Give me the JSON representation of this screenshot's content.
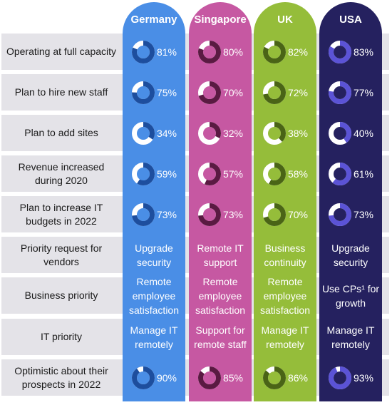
{
  "columns": [
    {
      "name": "Germany",
      "color": "#4a8ee6",
      "ring_fill": "#1d4e9e",
      "ring_track": "#ffffff"
    },
    {
      "name": "Singapore",
      "color": "#c658a2",
      "ring_fill": "#5a1a42",
      "ring_track": "#ffffff"
    },
    {
      "name": "UK",
      "color": "#95bd3a",
      "ring_fill": "#4a6416",
      "ring_track": "#ffffff"
    },
    {
      "name": "USA",
      "color": "#25215f",
      "ring_fill": "#5b53d6",
      "ring_track": "#ffffff"
    }
  ],
  "rows": [
    {
      "label": "Operating at full capacity",
      "kind": "pct"
    },
    {
      "label": "Plan to hire new staff",
      "kind": "pct"
    },
    {
      "label": "Plan to add sites",
      "kind": "pct"
    },
    {
      "label": "Revenue increased during 2020",
      "kind": "pct"
    },
    {
      "label": "Plan to increase IT budgets in 2022",
      "kind": "pct"
    },
    {
      "label": "Priority request for vendors",
      "kind": "text"
    },
    {
      "label": "Business priority",
      "kind": "text"
    },
    {
      "label": "IT priority",
      "kind": "text"
    },
    {
      "label": "Optimistic about their prospects in 2022",
      "kind": "pct"
    }
  ],
  "chart_data": {
    "type": "table",
    "series": [
      {
        "name": "Germany",
        "values": [
          81,
          75,
          34,
          59,
          73,
          90
        ]
      },
      {
        "name": "Singapore",
        "values": [
          80,
          70,
          32,
          57,
          73,
          85
        ]
      },
      {
        "name": "UK",
        "values": [
          82,
          72,
          38,
          58,
          70,
          86
        ]
      },
      {
        "name": "USA",
        "values": [
          83,
          77,
          40,
          61,
          73,
          93
        ]
      }
    ],
    "percent_rows": [
      "Operating at full capacity",
      "Plan to hire new staff",
      "Plan to add sites",
      "Revenue increased during 2020",
      "Plan to increase IT budgets in 2022",
      "Optimistic about their prospects in 2022"
    ],
    "text_cells": {
      "Priority request for vendors": [
        "Upgrade security",
        "Remote IT support",
        "Business continuity",
        "Upgrade security"
      ],
      "Business priority": [
        "Remote employee satisfaction",
        "Remote employee satisfaction",
        "Remote employee satisfaction",
        "Use CPs¹ for growth"
      ],
      "IT priority": [
        "Manage IT remotely",
        "Support for remote staff",
        "Manage IT remotely",
        "Manage IT remotely"
      ]
    },
    "unit": "%"
  }
}
